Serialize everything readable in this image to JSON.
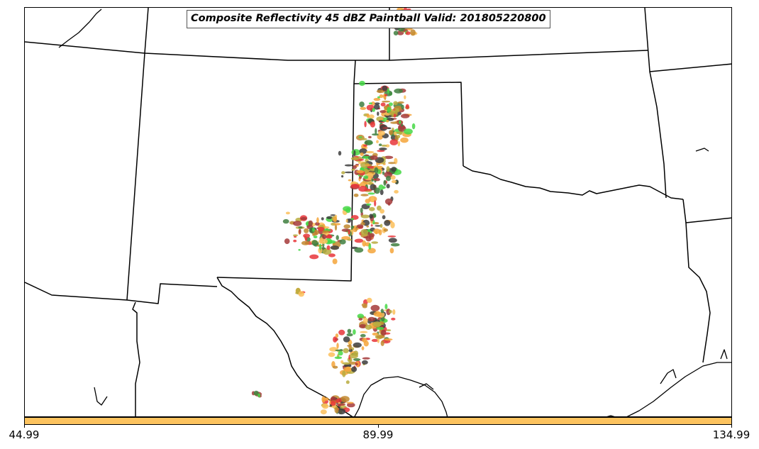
{
  "title": "Composite Reflectivity 45 dBZ Paintball Valid: 201805220800",
  "colorbar": {
    "color": "#fcc35f",
    "ticks": [
      "44.99",
      "89.99",
      "134.99"
    ]
  },
  "paintball_colors": [
    "#e8353a",
    "#45d845",
    "#f5a53a",
    "#fbbf5a",
    "#b8ab3e",
    "#a53a3a",
    "#3f7f3f",
    "#3d3d3d",
    "#c2882e"
  ]
}
